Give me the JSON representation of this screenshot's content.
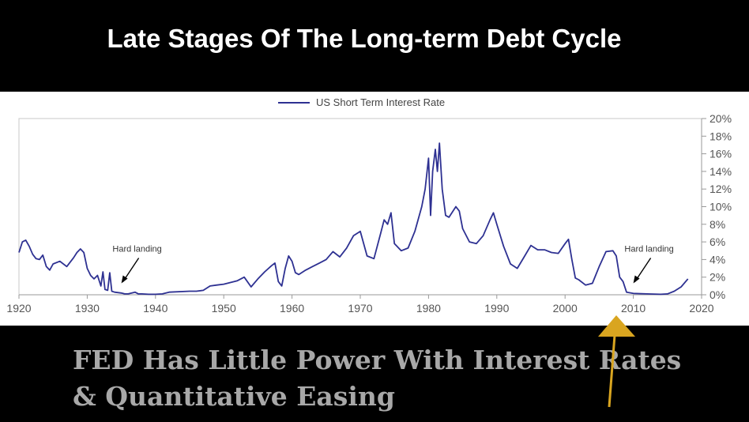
{
  "slide": {
    "title": "Late Stages Of The Long-term Debt Cycle",
    "caption_line1": "FED Has Little Power With Interest Rates",
    "caption_line2": "& Quantitative Easing"
  },
  "colors": {
    "line": "#2e3192",
    "arrow_overlay": "#d9a520",
    "axis": "#999999"
  },
  "chart_data": {
    "type": "line",
    "title": "",
    "xlabel": "",
    "ylabel": "",
    "xlim": [
      1920,
      2020
    ],
    "ylim": [
      0,
      20
    ],
    "xticks": [
      1920,
      1930,
      1940,
      1950,
      1960,
      1970,
      1980,
      1990,
      2000,
      2010,
      2020
    ],
    "yticks": [
      0,
      2,
      4,
      6,
      8,
      10,
      12,
      14,
      16,
      18,
      20
    ],
    "y_tick_labels": [
      "0%",
      "2%",
      "4%",
      "6%",
      "8%",
      "10%",
      "12%",
      "14%",
      "16%",
      "18%",
      "20%"
    ],
    "y_axis_side": "right",
    "grid": false,
    "legend_position": "top-center",
    "series": [
      {
        "name": "US Short Term Interest Rate",
        "x": [
          1920,
          1920.5,
          1921,
          1921.5,
          1922,
          1922.5,
          1923,
          1923.5,
          1924,
          1924.5,
          1925,
          1926,
          1927,
          1928,
          1928.5,
          1929,
          1929.5,
          1930,
          1930.5,
          1931,
          1931.5,
          1932,
          1932.3,
          1932.6,
          1933,
          1933.3,
          1933.6,
          1934,
          1935,
          1935.5,
          1936,
          1937,
          1937.5,
          1938,
          1939,
          1940,
          1941,
          1942,
          1945,
          1946,
          1947,
          1948,
          1949,
          1950,
          1952,
          1953,
          1954,
          1955,
          1956,
          1957,
          1957.5,
          1958,
          1958.5,
          1959,
          1959.5,
          1960,
          1960.5,
          1961,
          1962,
          1963,
          1964,
          1965,
          1966,
          1967,
          1968,
          1969,
          1970,
          1971,
          1972,
          1973,
          1973.5,
          1974,
          1974.5,
          1975,
          1976,
          1977,
          1978,
          1979,
          1979.5,
          1980,
          1980.3,
          1980.6,
          1981,
          1981.3,
          1981.6,
          1982,
          1982.5,
          1983,
          1984,
          1984.5,
          1985,
          1986,
          1987,
          1988,
          1989,
          1989.5,
          1990,
          1991,
          1992,
          1993,
          1994,
          1995,
          1996,
          1997,
          1998,
          1999,
          2000,
          2000.5,
          2001,
          2001.5,
          2002,
          2003,
          2004,
          2005,
          2006,
          2007,
          2007.5,
          2008,
          2008.5,
          2009,
          2010,
          2012,
          2014,
          2015,
          2016,
          2017,
          2018
        ],
        "values": [
          4.8,
          6.0,
          6.2,
          5.5,
          4.6,
          4.1,
          4.0,
          4.5,
          3.2,
          2.8,
          3.5,
          3.8,
          3.2,
          4.2,
          4.8,
          5.2,
          4.8,
          3.0,
          2.2,
          1.8,
          2.2,
          1.0,
          2.6,
          0.6,
          0.5,
          2.5,
          0.4,
          0.3,
          0.2,
          0.1,
          0.1,
          0.3,
          0.1,
          0.1,
          0.05,
          0.05,
          0.1,
          0.3,
          0.4,
          0.4,
          0.5,
          1.0,
          1.1,
          1.2,
          1.6,
          2.0,
          0.9,
          1.8,
          2.6,
          3.3,
          3.6,
          1.5,
          1.0,
          3.0,
          4.4,
          3.8,
          2.5,
          2.3,
          2.8,
          3.2,
          3.6,
          4.0,
          4.9,
          4.3,
          5.3,
          6.7,
          7.2,
          4.4,
          4.1,
          7.0,
          8.5,
          8.0,
          9.3,
          5.8,
          5.0,
          5.3,
          7.2,
          10.0,
          12.0,
          15.5,
          9.0,
          14.0,
          16.5,
          14.0,
          17.2,
          12.0,
          9.0,
          8.8,
          10.0,
          9.5,
          7.5,
          6.0,
          5.8,
          6.7,
          8.5,
          9.3,
          8.0,
          5.5,
          3.5,
          3.0,
          4.3,
          5.6,
          5.1,
          5.1,
          4.8,
          4.7,
          5.8,
          6.3,
          4.0,
          1.9,
          1.7,
          1.1,
          1.3,
          3.2,
          4.9,
          5.0,
          4.4,
          2.0,
          1.5,
          0.3,
          0.15,
          0.1,
          0.05,
          0.1,
          0.4,
          0.9,
          1.8
        ]
      }
    ],
    "annotations": [
      {
        "text": "Hard landing",
        "x": 1935,
        "y": 1.3
      },
      {
        "text": "Hard landing",
        "x": 2010,
        "y": 1.3
      }
    ]
  }
}
